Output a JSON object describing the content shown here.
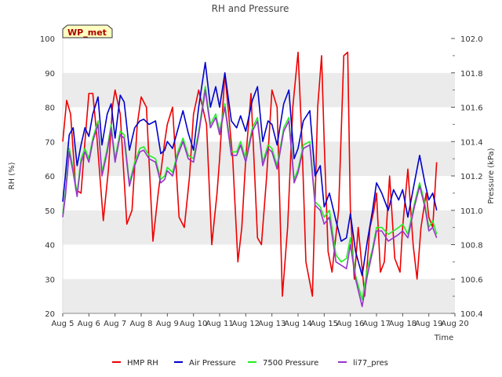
{
  "chart_data": {
    "type": "line",
    "title": "RH and Pressure",
    "badge": "WP_met",
    "xlabel": "Time",
    "ylabel_left": "RH (%)",
    "ylabel_right": "Pressure (kPa)",
    "x_ticks": [
      "Aug 5",
      "Aug 6",
      "Aug 7",
      "Aug 8",
      "Aug 9",
      "Aug 10",
      "Aug 11",
      "Aug 12",
      "Aug 13",
      "Aug 14",
      "Aug 15",
      "Aug 16",
      "Aug 17",
      "Aug 18",
      "Aug 19",
      "Aug 20"
    ],
    "xlim": [
      5,
      20
    ],
    "ylim_left": [
      20,
      100
    ],
    "ylim_right": [
      100.4,
      102.0
    ],
    "y_ticks_left": [
      "20",
      "30",
      "40",
      "50",
      "60",
      "70",
      "80",
      "90",
      "100"
    ],
    "y_ticks_right": [
      "100.4",
      "100.6",
      "100.8",
      "101.0",
      "101.2",
      "101.4",
      "101.6",
      "101.8",
      "102.0"
    ],
    "grid": "horizontal bands",
    "legend_position": "bottom",
    "colors": {
      "hmp_rh": "#ee0000",
      "air_pressure": "#0000cc",
      "p7500": "#22ee22",
      "li77": "#9933cc",
      "band": "#ebebeb",
      "badge_fill": "#ffffc0"
    },
    "series": [
      {
        "name": "HMP RH",
        "axis": "left",
        "color": "#ee0000",
        "x": [
          5.0,
          5.15,
          5.3,
          5.5,
          5.7,
          5.85,
          6.0,
          6.15,
          6.3,
          6.55,
          6.75,
          6.9,
          7.0,
          7.2,
          7.45,
          7.65,
          7.85,
          8.0,
          8.2,
          8.45,
          8.65,
          8.9,
          9.0,
          9.2,
          9.45,
          9.65,
          9.85,
          10.0,
          10.2,
          10.5,
          10.7,
          10.9,
          11.0,
          11.2,
          11.5,
          11.7,
          11.85,
          12.0,
          12.2,
          12.45,
          12.6,
          12.8,
          13.0,
          13.2,
          13.4,
          13.6,
          13.8,
          14.0,
          14.15,
          14.3,
          14.55,
          14.75,
          14.9,
          15.0,
          15.15,
          15.3,
          15.55,
          15.75,
          15.9,
          16.0,
          16.15,
          16.3,
          16.55,
          16.75,
          16.9,
          17.0,
          17.15,
          17.3,
          17.5,
          17.7,
          17.9,
          18.0,
          18.2,
          18.4,
          18.55,
          18.7,
          18.9,
          19.0,
          19.15,
          19.3
        ],
        "y": [
          70,
          82,
          78,
          56,
          55,
          70,
          84,
          84,
          72,
          47,
          62,
          80,
          85,
          78,
          46,
          50,
          75,
          83,
          80,
          41,
          55,
          70,
          75,
          80,
          48,
          45,
          60,
          78,
          85,
          75,
          40,
          55,
          65,
          90,
          65,
          35,
          45,
          65,
          84,
          42,
          40,
          60,
          85,
          80,
          25,
          45,
          80,
          96,
          70,
          35,
          25,
          80,
          95,
          70,
          38,
          32,
          50,
          95,
          96,
          50,
          30,
          45,
          25,
          45,
          50,
          55,
          32,
          35,
          60,
          36,
          32,
          45,
          62,
          40,
          30,
          45,
          55,
          48,
          45,
          64
        ]
      },
      {
        "name": "Air Pressure",
        "axis": "right",
        "color": "#0000cc",
        "x": [
          5.0,
          5.1,
          5.25,
          5.4,
          5.55,
          5.7,
          5.85,
          6.0,
          6.15,
          6.35,
          6.5,
          6.7,
          6.85,
          7.0,
          7.2,
          7.35,
          7.55,
          7.75,
          7.95,
          8.1,
          8.3,
          8.55,
          8.75,
          8.9,
          9.0,
          9.2,
          9.4,
          9.6,
          9.8,
          10.0,
          10.2,
          10.45,
          10.65,
          10.85,
          11.0,
          11.2,
          11.45,
          11.65,
          11.8,
          12.0,
          12.25,
          12.45,
          12.65,
          12.85,
          13.0,
          13.2,
          13.45,
          13.65,
          13.85,
          14.0,
          14.2,
          14.45,
          14.65,
          14.85,
          15.0,
          15.2,
          15.45,
          15.65,
          15.85,
          16.0,
          16.2,
          16.45,
          16.65,
          16.85,
          17.0,
          17.2,
          17.45,
          17.65,
          17.85,
          18.0,
          18.2,
          18.45,
          18.65,
          18.85,
          19.0,
          19.15,
          19.3
        ],
        "y": [
          101.05,
          101.2,
          101.44,
          101.48,
          101.26,
          101.38,
          101.48,
          101.43,
          101.56,
          101.66,
          101.38,
          101.56,
          101.62,
          101.42,
          101.67,
          101.63,
          101.35,
          101.48,
          101.52,
          101.53,
          101.5,
          101.52,
          101.33,
          101.35,
          101.4,
          101.36,
          101.47,
          101.58,
          101.45,
          101.35,
          101.6,
          101.86,
          101.6,
          101.72,
          101.6,
          101.8,
          101.52,
          101.48,
          101.55,
          101.46,
          101.64,
          101.72,
          101.4,
          101.52,
          101.5,
          101.38,
          101.62,
          101.7,
          101.3,
          101.36,
          101.52,
          101.58,
          101.2,
          101.26,
          101.02,
          101.1,
          100.94,
          100.82,
          100.84,
          100.98,
          100.76,
          100.62,
          100.82,
          101.0,
          101.16,
          101.1,
          101.0,
          101.12,
          101.06,
          101.12,
          100.96,
          101.16,
          101.32,
          101.16,
          101.06,
          101.1,
          101.0
        ]
      },
      {
        "name": "7500 Pressure",
        "axis": "right",
        "color": "#22ee22",
        "x": [
          5.0,
          5.1,
          5.25,
          5.4,
          5.55,
          5.7,
          5.85,
          6.0,
          6.15,
          6.35,
          6.5,
          6.7,
          6.85,
          7.0,
          7.2,
          7.35,
          7.55,
          7.75,
          7.95,
          8.1,
          8.3,
          8.55,
          8.75,
          8.9,
          9.0,
          9.2,
          9.4,
          9.6,
          9.8,
          10.0,
          10.2,
          10.45,
          10.65,
          10.85,
          11.0,
          11.2,
          11.45,
          11.65,
          11.8,
          12.0,
          12.25,
          12.45,
          12.65,
          12.85,
          13.0,
          13.2,
          13.45,
          13.65,
          13.85,
          14.0,
          14.2,
          14.45,
          14.65,
          14.85,
          15.0,
          15.2,
          15.45,
          15.65,
          15.85,
          16.0,
          16.2,
          16.45,
          16.65,
          16.85,
          17.0,
          17.2,
          17.45,
          17.65,
          17.85,
          18.0,
          18.2,
          18.45,
          18.65,
          18.85,
          19.0,
          19.15,
          19.3
        ],
        "y": [
          100.98,
          101.1,
          101.36,
          101.24,
          101.1,
          101.3,
          101.36,
          101.3,
          101.42,
          101.52,
          101.22,
          101.36,
          101.5,
          101.3,
          101.46,
          101.44,
          101.16,
          101.28,
          101.36,
          101.37,
          101.32,
          101.3,
          101.18,
          101.2,
          101.25,
          101.22,
          101.34,
          101.42,
          101.32,
          101.3,
          101.46,
          101.72,
          101.5,
          101.56,
          101.46,
          101.62,
          101.34,
          101.34,
          101.4,
          101.3,
          101.48,
          101.54,
          101.28,
          101.38,
          101.36,
          101.26,
          101.48,
          101.54,
          101.18,
          101.24,
          101.38,
          101.4,
          101.05,
          101.02,
          100.96,
          101.0,
          100.74,
          100.7,
          100.72,
          100.84,
          100.62,
          100.48,
          100.66,
          100.78,
          100.9,
          100.9,
          100.86,
          100.88,
          100.9,
          100.92,
          100.86,
          101.04,
          101.16,
          101.04,
          100.9,
          100.94,
          100.86
        ]
      },
      {
        "name": "li77_pres",
        "axis": "right",
        "color": "#9933cc",
        "x": [
          5.0,
          5.1,
          5.25,
          5.4,
          5.55,
          5.7,
          5.85,
          6.0,
          6.15,
          6.35,
          6.5,
          6.7,
          6.85,
          7.0,
          7.2,
          7.35,
          7.55,
          7.75,
          7.95,
          8.1,
          8.3,
          8.55,
          8.75,
          8.9,
          9.0,
          9.2,
          9.4,
          9.6,
          9.8,
          10.0,
          10.2,
          10.45,
          10.65,
          10.85,
          11.0,
          11.2,
          11.45,
          11.65,
          11.8,
          12.0,
          12.25,
          12.45,
          12.65,
          12.85,
          13.0,
          13.2,
          13.45,
          13.65,
          13.85,
          14.0,
          14.2,
          14.45,
          14.65,
          14.85,
          15.0,
          15.2,
          15.45,
          15.65,
          15.85,
          16.0,
          16.2,
          16.45,
          16.65,
          16.85,
          17.0,
          17.2,
          17.45,
          17.65,
          17.85,
          18.0,
          18.2,
          18.45,
          18.65,
          18.85,
          19.0,
          19.15,
          19.3
        ],
        "y": [
          100.96,
          101.08,
          101.34,
          101.22,
          101.08,
          101.28,
          101.34,
          101.28,
          101.4,
          101.5,
          101.2,
          101.34,
          101.48,
          101.28,
          101.44,
          101.42,
          101.14,
          101.26,
          101.34,
          101.35,
          101.3,
          101.28,
          101.16,
          101.18,
          101.23,
          101.2,
          101.32,
          101.4,
          101.3,
          101.28,
          101.44,
          101.7,
          101.48,
          101.54,
          101.44,
          101.6,
          101.32,
          101.32,
          101.38,
          101.28,
          101.46,
          101.52,
          101.26,
          101.36,
          101.34,
          101.24,
          101.46,
          101.52,
          101.16,
          101.22,
          101.36,
          101.38,
          101.03,
          101.0,
          100.92,
          100.96,
          100.7,
          100.68,
          100.66,
          100.8,
          100.6,
          100.44,
          100.62,
          100.76,
          100.88,
          100.88,
          100.82,
          100.84,
          100.86,
          100.88,
          100.84,
          101.02,
          101.14,
          101.02,
          100.88,
          100.9,
          100.84
        ]
      }
    ]
  }
}
